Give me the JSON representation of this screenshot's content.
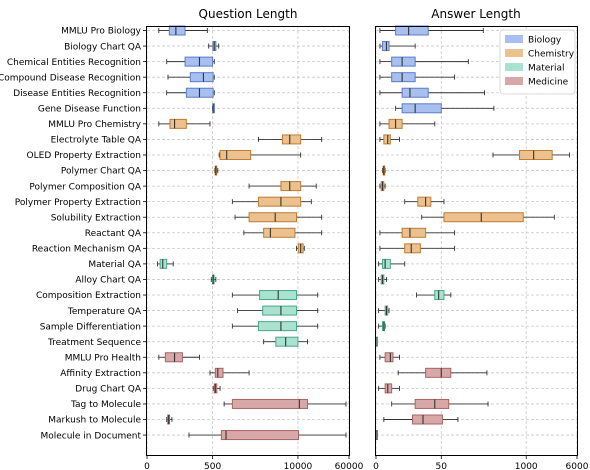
{
  "chart_data": [
    {
      "type": "boxplot",
      "title": "Question Length",
      "xscale": "symlog",
      "xlim": [
        0,
        60000
      ],
      "xticks": [
        0,
        500,
        10000,
        60000
      ],
      "xtick_labels": [
        "0",
        "500",
        "10000",
        "60000"
      ],
      "grid": true,
      "categories": [
        "MMLU Pro Biology",
        "Biology Chart QA",
        "Chemical Entities Recognition",
        "Compound Disease Recognition",
        "Disease Entities Recognition",
        "Gene Disease Function",
        "MMLU Pro Chemistry",
        "Electrolyte Table QA",
        "OLED Property Extraction",
        "Polymer Chart QA",
        "Polymer Composition QA",
        "Polymer Property Extraction",
        "Solubility Extraction",
        "Reactant QA",
        "Reaction Mechanism QA",
        "Material QA",
        "Alloy Chart QA",
        "Composition Extraction",
        "Temperature QA",
        "Sample Differentiation",
        "Treatment Sequence",
        "MMLU Pro Health",
        "Affinity Extraction",
        "Drug Chart QA",
        "Tag to Molecule",
        "Markush to Molecule",
        "Molecule in Document"
      ],
      "domains": [
        "Biology",
        "Biology",
        "Biology",
        "Biology",
        "Biology",
        "Biology",
        "Chemistry",
        "Chemistry",
        "Chemistry",
        "Chemistry",
        "Chemistry",
        "Chemistry",
        "Chemistry",
        "Chemistry",
        "Chemistry",
        "Material",
        "Material",
        "Material",
        "Material",
        "Material",
        "Material",
        "Medicine",
        "Medicine",
        "Medicine",
        "Medicine",
        "Medicine",
        "Medicine"
      ],
      "stats": [
        [
          90,
          170,
          220,
          290,
          460
        ],
        [
          470,
          505,
          530,
          560,
          620
        ],
        [
          150,
          290,
          400,
          500,
          530
        ],
        [
          160,
          330,
          430,
          510,
          530
        ],
        [
          150,
          300,
          400,
          510,
          530
        ],
        [
          500,
          505,
          510,
          515,
          520
        ],
        [
          90,
          175,
          210,
          300,
          480
        ],
        [
          2500,
          5800,
          7500,
          11000,
          23000
        ],
        [
          630,
          650,
          820,
          1900,
          11000
        ],
        [
          540,
          548,
          560,
          578,
          600
        ],
        [
          1800,
          5500,
          7500,
          11000,
          19000
        ],
        [
          1000,
          2500,
          5500,
          11000,
          16000
        ],
        [
          1100,
          1800,
          4500,
          9500,
          23000
        ],
        [
          1500,
          3000,
          3800,
          9000,
          23000
        ],
        [
          9500,
          10100,
          11000,
          12000,
          12500
        ],
        [
          80,
          100,
          120,
          150,
          200
        ],
        [
          490,
          500,
          510,
          520,
          560
        ],
        [
          1000,
          2600,
          5000,
          9500,
          20000
        ],
        [
          1200,
          2900,
          5500,
          9500,
          20000
        ],
        [
          1000,
          2500,
          5500,
          9500,
          20000
        ],
        [
          3000,
          4600,
          6500,
          10000,
          14000
        ],
        [
          90,
          140,
          210,
          270,
          400
        ],
        [
          480,
          550,
          600,
          720,
          1800
        ],
        [
          510,
          530,
          550,
          580,
          650
        ],
        [
          750,
          1000,
          10500,
          14000,
          54000
        ],
        [
          150,
          158,
          165,
          172,
          190
        ],
        [
          320,
          680,
          800,
          10200,
          54000
        ]
      ]
    },
    {
      "type": "boxplot",
      "title": "Answer Length",
      "xscale": "symlog",
      "xlim": [
        0,
        6000
      ],
      "xticks": [
        0,
        50,
        1000,
        6000
      ],
      "xtick_labels": [
        "0",
        "50",
        "1000",
        "6000"
      ],
      "grid": true,
      "categories": [
        "MMLU Pro Biology",
        "Biology Chart QA",
        "Chemical Entities Recognition",
        "Compound Disease Recognition",
        "Disease Entities Recognition",
        "Gene Disease Function",
        "MMLU Pro Chemistry",
        "Electrolyte Table QA",
        "OLED Property Extraction",
        "Polymer Chart QA",
        "Polymer Composition QA",
        "Polymer Property Extraction",
        "Solubility Extraction",
        "Reactant QA",
        "Reaction Mechanism QA",
        "Material QA",
        "Alloy Chart QA",
        "Composition Extraction",
        "Temperature QA",
        "Sample Differentiation",
        "Treatment Sequence",
        "MMLU Pro Health",
        "Affinity Extraction",
        "Drug Chart QA",
        "Tag to Molecule",
        "Markush to Molecule",
        "Molecule in Document"
      ],
      "domains": [
        "Biology",
        "Biology",
        "Biology",
        "Biology",
        "Biology",
        "Biology",
        "Chemistry",
        "Chemistry",
        "Chemistry",
        "Chemistry",
        "Chemistry",
        "Chemistry",
        "Chemistry",
        "Chemistry",
        "Chemistry",
        "Material",
        "Material",
        "Material",
        "Material",
        "Material",
        "Material",
        "Medicine",
        "Medicine",
        "Medicine",
        "Medicine",
        "Medicine",
        "Medicine"
      ],
      "stats": [
        [
          3,
          15,
          25,
          40,
          220
        ],
        [
          3,
          5,
          8,
          10,
          30
        ],
        [
          3,
          12,
          20,
          30,
          130
        ],
        [
          3,
          12,
          20,
          30,
          80
        ],
        [
          3,
          20,
          26,
          40,
          230
        ],
        [
          15,
          20,
          30,
          50,
          320
        ],
        [
          3,
          10,
          15,
          20,
          45
        ],
        [
          3,
          6,
          9,
          11,
          18
        ],
        [
          310,
          790,
          1300,
          2500,
          4600
        ],
        [
          5,
          5.5,
          6,
          6.5,
          7
        ],
        [
          3,
          4,
          5,
          6,
          7
        ],
        [
          22,
          32,
          38,
          42,
          55
        ],
        [
          35,
          55,
          205,
          900,
          2700
        ],
        [
          3,
          20,
          26,
          38,
          80
        ],
        [
          3,
          22,
          27,
          34,
          80
        ],
        [
          2,
          5,
          7,
          11,
          22
        ],
        [
          2,
          4,
          5,
          6,
          8
        ],
        [
          31,
          45,
          48,
          55,
          70
        ],
        [
          2,
          7,
          8,
          9,
          10
        ],
        [
          2,
          5,
          6,
          6.5,
          7
        ],
        [
          0,
          0,
          0,
          0,
          0
        ],
        [
          3,
          7,
          11,
          13,
          18
        ],
        [
          17,
          38,
          50,
          70,
          250
        ],
        [
          2,
          7,
          9,
          12,
          18
        ],
        [
          12,
          30,
          45,
          65,
          260
        ],
        [
          6,
          28,
          36,
          52,
          90
        ],
        [
          0,
          0,
          0,
          0,
          0
        ]
      ],
      "legend": {
        "position": "top-right",
        "entries": [
          {
            "label": "Biology",
            "color": "#a8bfef"
          },
          {
            "label": "Chemistry",
            "color": "#ebc18f"
          },
          {
            "label": "Material",
            "color": "#a9e2cf"
          },
          {
            "label": "Medicine",
            "color": "#d8a8a8"
          }
        ]
      }
    }
  ],
  "colors": {
    "Biology": {
      "fill": "#a8bfef",
      "edge": "#5b7cc8"
    },
    "Chemistry": {
      "fill": "#ebc18f",
      "edge": "#c07c30"
    },
    "Material": {
      "fill": "#a9e2cf",
      "edge": "#4aa88a"
    },
    "Medicine": {
      "fill": "#d8a8a8",
      "edge": "#a86464"
    }
  }
}
